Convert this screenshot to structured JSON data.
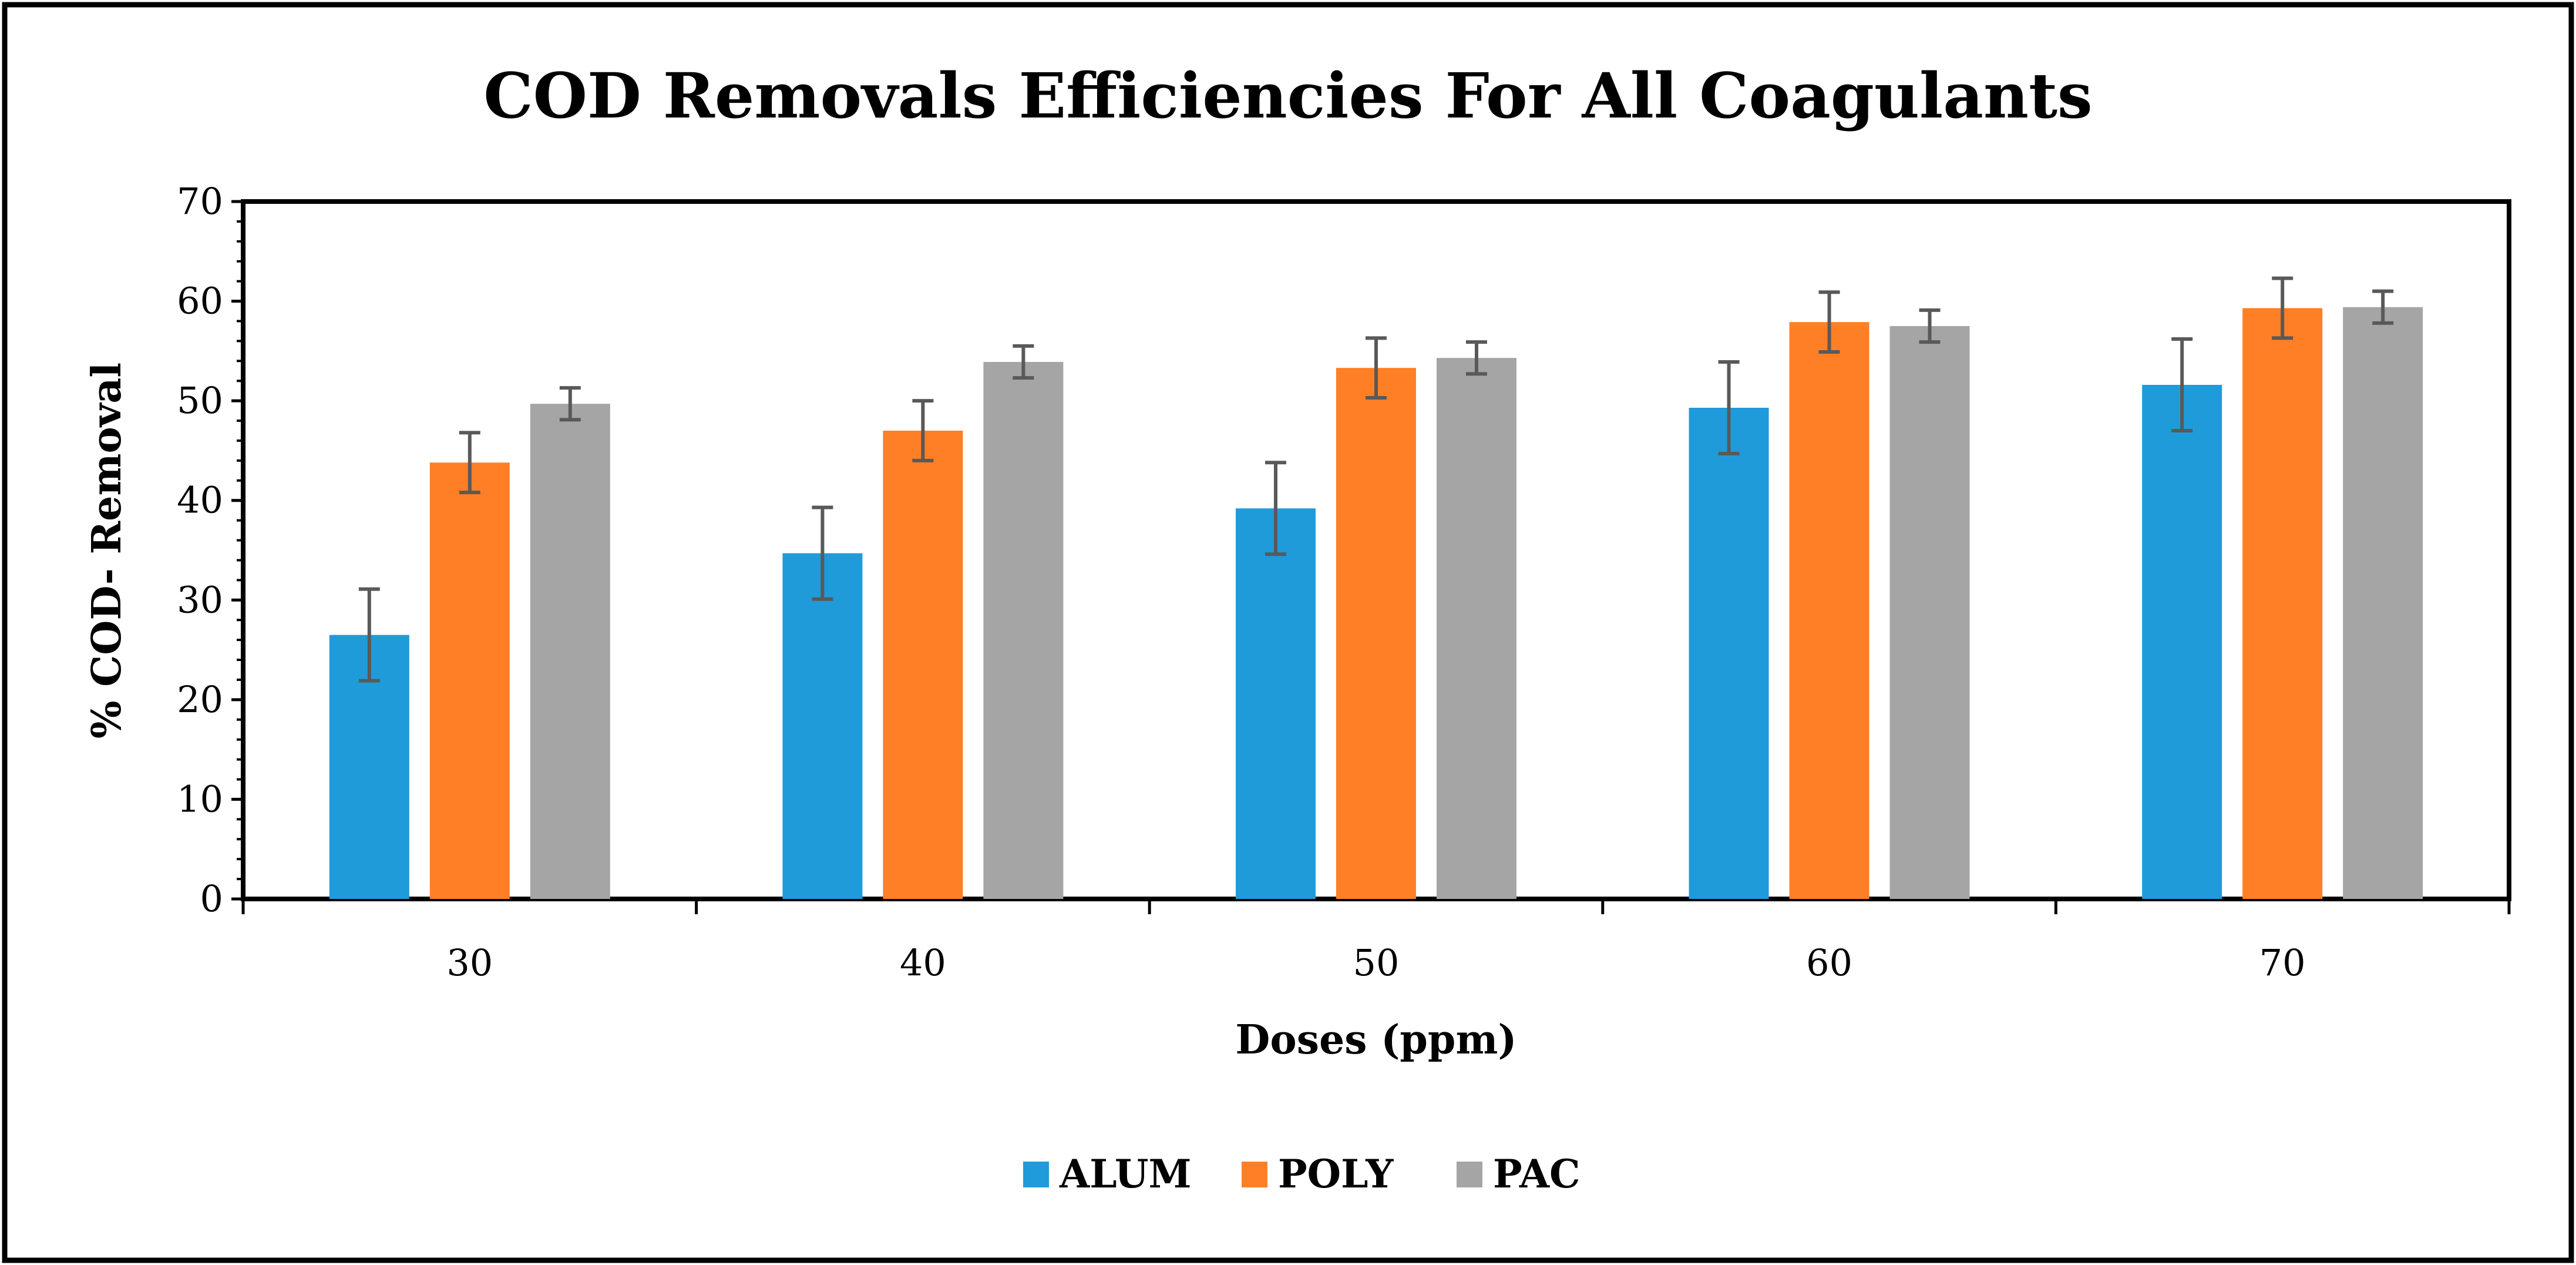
{
  "chart_data": {
    "type": "bar",
    "title": "COD Removals Efficiencies For All Coagulants",
    "xlabel": "Doses (ppm)",
    "ylabel": "% COD- Removal",
    "categories": [
      "30",
      "40",
      "50",
      "60",
      "70"
    ],
    "ylim": [
      0,
      70
    ],
    "yticks": [
      "0",
      "10",
      "20",
      "30",
      "40",
      "50",
      "60",
      "70"
    ],
    "grid": false,
    "legend_position": "bottom-center",
    "series": [
      {
        "name": "ALUM",
        "color": "#1f9bd9",
        "values": [
          26.5,
          34.7,
          39.2,
          49.3,
          51.6
        ],
        "errors": [
          4.6,
          4.6,
          4.6,
          4.6,
          4.6
        ]
      },
      {
        "name": "POLY",
        "color": "#ff7f27",
        "values": [
          43.8,
          47.0,
          53.3,
          57.9,
          59.3
        ],
        "errors": [
          3.0,
          3.0,
          3.0,
          3.0,
          3.0
        ]
      },
      {
        "name": "PAC",
        "color": "#a5a5a5",
        "values": [
          49.7,
          53.9,
          54.3,
          57.5,
          59.4
        ],
        "errors": [
          1.6,
          1.6,
          1.6,
          1.6,
          1.6
        ]
      }
    ]
  }
}
